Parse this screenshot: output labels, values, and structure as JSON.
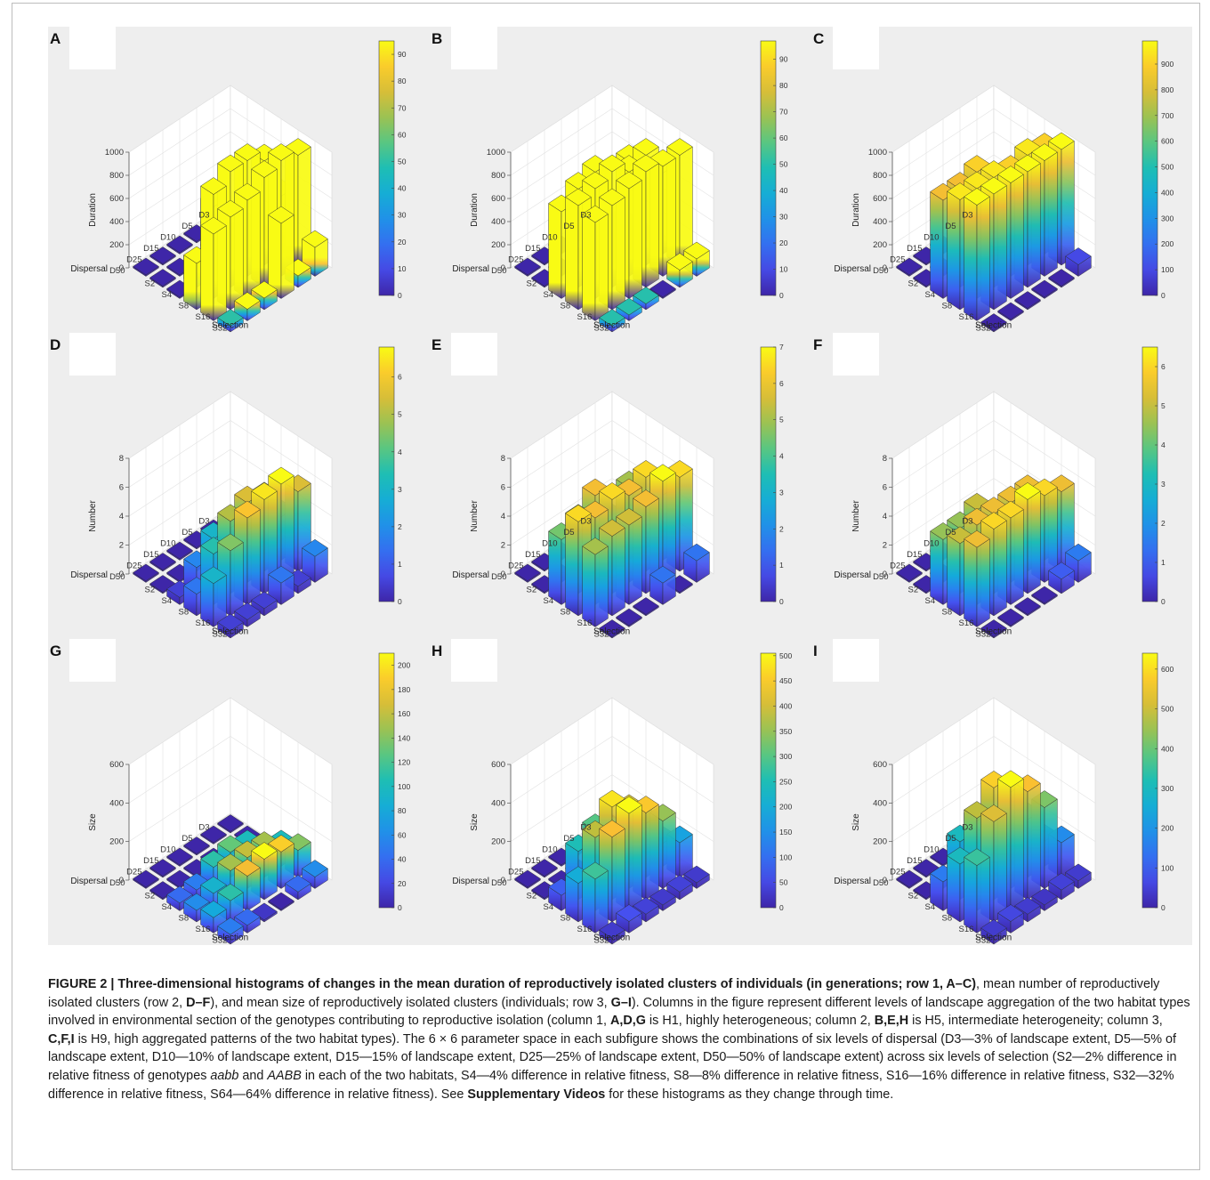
{
  "figure": {
    "caption": {
      "title": "FIGURE 2 | Three-dimensional histograms of changes in the mean duration of reproductively isolated clusters of individuals (in generations; row 1, A–C)",
      "segments": [
        {
          "text": ", mean number of reproductively isolated clusters (row 2, ",
          "bold": false
        },
        {
          "text": "D–F",
          "bold": true
        },
        {
          "text": "), and mean size of reproductively isolated clusters (individuals; row 3, ",
          "bold": false
        },
        {
          "text": "G–I",
          "bold": true
        },
        {
          "text": "). Columns in the figure represent different levels of landscape aggregation of the two habitat types involved in environmental section of the genotypes contributing to reproductive isolation (column 1, ",
          "bold": false
        },
        {
          "text": "A,D,G",
          "bold": true
        },
        {
          "text": " is H1, highly heterogeneous; column 2, ",
          "bold": false
        },
        {
          "text": "B,E,H",
          "bold": true
        },
        {
          "text": " is H5, intermediate heterogeneity; column 3, ",
          "bold": false
        },
        {
          "text": "C,F,I",
          "bold": true
        },
        {
          "text": " is H9, high aggregated patterns of the two habitat types). The 6 × 6 parameter space in each subfigure shows the combinations of six levels of dispersal (D3—3% of landscape extent, D5—5% of landscape extent, D10—10% of landscape extent, D15—15% of landscape extent, D25—25% of landscape extent, D50—50% of landscape extent) across six levels of selection (S2—2% difference in relative fitness of genotypes ",
          "bold": false
        },
        {
          "text": "aabb",
          "bold": false,
          "italic": true
        },
        {
          "text": " and ",
          "bold": false
        },
        {
          "text": "AABB",
          "bold": false,
          "italic": true
        },
        {
          "text": " in each of the two habitats, S4—4% difference in relative fitness, S8—8% difference in relative fitness, S16—16% difference in relative fitness, S32—32% difference in relative fitness, S64—64% difference in relative fitness). See ",
          "bold": false
        },
        {
          "text": "Supplementary Videos",
          "bold": true
        },
        {
          "text": " for these histograms as they change through time.",
          "bold": false
        }
      ]
    }
  },
  "chart_data": [
    {
      "type": "bar3d",
      "panel": "A",
      "zlabel": "Duration",
      "xlabel": "Dispersal",
      "ylabel": "Selection",
      "dispersal": [
        "D3",
        "D5",
        "D10",
        "D15",
        "D25",
        "D50"
      ],
      "selection": [
        "S2",
        "S4",
        "S8",
        "S16",
        "S32",
        "S64"
      ],
      "z_ticks": [
        0,
        200,
        400,
        600,
        800,
        1000
      ],
      "zlim": [
        0,
        1000
      ],
      "colorbar_ticks": [
        "0",
        "10",
        "20",
        "30",
        "40",
        "50",
        "60",
        "70",
        "80",
        "90"
      ],
      "colorbar_max": 95,
      "values": [
        [
          0,
          0,
          0,
          500,
          950,
          250
        ],
        [
          0,
          0,
          450,
          900,
          1000,
          100
        ],
        [
          0,
          0,
          350,
          1000,
          950,
          650
        ],
        [
          0,
          0,
          600,
          1000,
          850,
          100
        ],
        [
          0,
          0,
          200,
          900,
          800,
          100
        ],
        [
          0,
          0,
          0,
          400,
          750,
          50
        ]
      ]
    },
    {
      "type": "bar3d",
      "panel": "B",
      "zlabel": "Duration",
      "xlabel": "Dispersal",
      "ylabel": "Selection",
      "dispersal": [
        "D3",
        "D5",
        "D10",
        "D15",
        "D25",
        "D50"
      ],
      "selection": [
        "S2",
        "S4",
        "S8",
        "S16",
        "S32",
        "S64"
      ],
      "z_ticks": [
        0,
        200,
        400,
        600,
        800,
        1000
      ],
      "zlim": [
        0,
        1000
      ],
      "colorbar_ticks": [
        "0",
        "10",
        "20",
        "30",
        "40",
        "50",
        "60",
        "70",
        "80",
        "90"
      ],
      "colorbar_max": 97,
      "values": [
        [
          0,
          0,
          0,
          700,
          950,
          150
        ],
        [
          0,
          0,
          800,
          950,
          950,
          150
        ],
        [
          0,
          0,
          450,
          900,
          1000,
          0
        ],
        [
          0,
          0,
          900,
          1000,
          950,
          50
        ],
        [
          0,
          0,
          850,
          950,
          900,
          50
        ],
        [
          0,
          0,
          750,
          900,
          850,
          50
        ]
      ]
    },
    {
      "type": "bar3d",
      "panel": "C",
      "zlabel": "Duration",
      "xlabel": "Dispersal",
      "ylabel": "Selection",
      "dispersal": [
        "D3",
        "D5",
        "D10",
        "D15",
        "D25",
        "D50"
      ],
      "selection": [
        "S2",
        "S4",
        "S8",
        "S16",
        "S32",
        "S64"
      ],
      "z_ticks": [
        0,
        200,
        400,
        600,
        800,
        1000
      ],
      "zlim": [
        0,
        1000
      ],
      "colorbar_ticks": [
        "0",
        "100",
        "200",
        "300",
        "400",
        "500",
        "600",
        "700",
        "800",
        "900"
      ],
      "colorbar_max": 990,
      "values": [
        [
          0,
          0,
          0,
          900,
          1000,
          100
        ],
        [
          0,
          0,
          500,
          950,
          1000,
          0
        ],
        [
          0,
          0,
          450,
          900,
          1000,
          0
        ],
        [
          0,
          0,
          900,
          950,
          1000,
          0
        ],
        [
          0,
          0,
          850,
          950,
          1000,
          0
        ],
        [
          0,
          0,
          850,
          950,
          1000,
          0
        ]
      ]
    },
    {
      "type": "bar3d",
      "panel": "D",
      "zlabel": "Number",
      "xlabel": "Dispersal",
      "ylabel": "Selection",
      "dispersal": [
        "D3",
        "D5",
        "D10",
        "D15",
        "D25",
        "D50"
      ],
      "selection": [
        "S2",
        "S4",
        "S8",
        "S16",
        "S32",
        "S64"
      ],
      "z_ticks": [
        0,
        2,
        4,
        6,
        8
      ],
      "zlim": [
        0,
        8
      ],
      "colorbar_ticks": [
        "0",
        "1",
        "2",
        "3",
        "4",
        "5",
        "6"
      ],
      "colorbar_max": 6.8,
      "values": [
        [
          0,
          0,
          0,
          3,
          5.5,
          1.8
        ],
        [
          0,
          0,
          3,
          5,
          6.8,
          0.5
        ],
        [
          0,
          0,
          3,
          5.5,
          6.5,
          1.5
        ],
        [
          0,
          0,
          3,
          5,
          6,
          0.5
        ],
        [
          0,
          0,
          1.8,
          3.5,
          4.5,
          0.5
        ],
        [
          0,
          0,
          0.5,
          1.5,
          3,
          0.5
        ]
      ]
    },
    {
      "type": "bar3d",
      "panel": "E",
      "zlabel": "Number",
      "xlabel": "Dispersal",
      "ylabel": "Selection",
      "dispersal": [
        "D3",
        "D5",
        "D10",
        "D15",
        "D25",
        "D50"
      ],
      "selection": [
        "S2",
        "S4",
        "S8",
        "S16",
        "S32",
        "S64"
      ],
      "z_ticks": [
        0,
        2,
        4,
        6,
        8
      ],
      "zlim": [
        0,
        8
      ],
      "colorbar_ticks": [
        "0",
        "1",
        "2",
        "3",
        "4",
        "5",
        "6",
        "7"
      ],
      "colorbar_max": 7,
      "values": [
        [
          0,
          0,
          0,
          4.5,
          6.5,
          1.5
        ],
        [
          0,
          0,
          5,
          6.5,
          7,
          0
        ],
        [
          0,
          0,
          3.5,
          6,
          6,
          1.5
        ],
        [
          0,
          0,
          6,
          6.5,
          5.5,
          0
        ],
        [
          0,
          0,
          5,
          6,
          5.5,
          0
        ],
        [
          0,
          0,
          4.5,
          6.5,
          5,
          0
        ]
      ]
    },
    {
      "type": "bar3d",
      "panel": "F",
      "zlabel": "Number",
      "xlabel": "Dispersal",
      "ylabel": "Selection",
      "dispersal": [
        "D3",
        "D5",
        "D10",
        "D15",
        "D25",
        "D50"
      ],
      "selection": [
        "S2",
        "S4",
        "S8",
        "S16",
        "S32",
        "S64"
      ],
      "z_ticks": [
        0,
        2,
        4,
        6,
        8
      ],
      "zlim": [
        0,
        8
      ],
      "colorbar_ticks": [
        "0",
        "1",
        "2",
        "3",
        "4",
        "5",
        "6"
      ],
      "colorbar_max": 6.5,
      "values": [
        [
          0,
          0,
          0,
          3.5,
          5.5,
          1.5
        ],
        [
          0,
          0,
          3.5,
          5.5,
          6,
          1
        ],
        [
          0,
          0,
          3,
          5.5,
          6.5,
          0
        ],
        [
          0,
          0,
          5,
          5.5,
          6,
          0
        ],
        [
          0,
          0,
          4.5,
          5.5,
          6,
          0
        ],
        [
          0,
          0,
          4.5,
          5,
          5.5,
          0
        ]
      ]
    },
    {
      "type": "bar3d",
      "panel": "G",
      "zlabel": "Size",
      "xlabel": "Dispersal",
      "ylabel": "Selection",
      "dispersal": [
        "D3",
        "D5",
        "D10",
        "D15",
        "D25",
        "D50"
      ],
      "selection": [
        "S2",
        "S4",
        "S8",
        "S16",
        "S32",
        "S64"
      ],
      "z_ticks": [
        0,
        200,
        400,
        600
      ],
      "zlim": [
        0,
        600
      ],
      "colorbar_ticks": [
        "0",
        "20",
        "40",
        "60",
        "80",
        "100",
        "120",
        "140",
        "160",
        "180",
        "200"
      ],
      "colorbar_max": 210,
      "values": [
        [
          0,
          0,
          0,
          100,
          140,
          60
        ],
        [
          0,
          0,
          100,
          150,
          190,
          40
        ],
        [
          0,
          0,
          130,
          160,
          210,
          0
        ],
        [
          0,
          0,
          110,
          150,
          180,
          10
        ],
        [
          0,
          0,
          50,
          90,
          110,
          40
        ],
        [
          0,
          0,
          40,
          60,
          80,
          50
        ]
      ]
    },
    {
      "type": "bar3d",
      "panel": "H",
      "zlabel": "Size",
      "xlabel": "Dispersal",
      "ylabel": "Selection",
      "dispersal": [
        "D3",
        "D5",
        "D10",
        "D15",
        "D25",
        "D50"
      ],
      "selection": [
        "S2",
        "S4",
        "S8",
        "S16",
        "S32",
        "S64"
      ],
      "z_ticks": [
        0,
        200,
        400,
        600
      ],
      "zlim": [
        0,
        600
      ],
      "colorbar_ticks": [
        "0",
        "50",
        "100",
        "150",
        "200",
        "250",
        "300",
        "350",
        "400",
        "450",
        "500"
      ],
      "colorbar_max": 505,
      "values": [
        [
          0,
          0,
          60,
          120,
          180,
          30
        ],
        [
          0,
          0,
          130,
          280,
          350,
          40
        ],
        [
          0,
          0,
          230,
          400,
          450,
          30
        ],
        [
          0,
          0,
          300,
          480,
          505,
          40
        ],
        [
          0,
          0,
          250,
          380,
          440,
          60
        ],
        [
          0,
          0,
          80,
          200,
          280,
          30
        ]
      ]
    },
    {
      "type": "bar3d",
      "panel": "I",
      "zlabel": "Size",
      "xlabel": "Dispersal",
      "ylabel": "Selection",
      "dispersal": [
        "D3",
        "D5",
        "D10",
        "D15",
        "D25",
        "D50"
      ],
      "selection": [
        "S2",
        "S4",
        "S8",
        "S16",
        "S32",
        "S64"
      ],
      "z_ticks": [
        0,
        200,
        400,
        600
      ],
      "zlim": [
        0,
        600
      ],
      "colorbar_ticks": [
        "0",
        "100",
        "200",
        "300",
        "400",
        "500",
        "600"
      ],
      "colorbar_max": 640,
      "values": [
        [
          0,
          0,
          60,
          130,
          180,
          40
        ],
        [
          0,
          0,
          150,
          300,
          420,
          50
        ],
        [
          0,
          0,
          250,
          500,
          560,
          30
        ],
        [
          0,
          0,
          350,
          580,
          640,
          40
        ],
        [
          0,
          0,
          300,
          480,
          520,
          60
        ],
        [
          0,
          0,
          150,
          300,
          350,
          40
        ]
      ]
    }
  ]
}
